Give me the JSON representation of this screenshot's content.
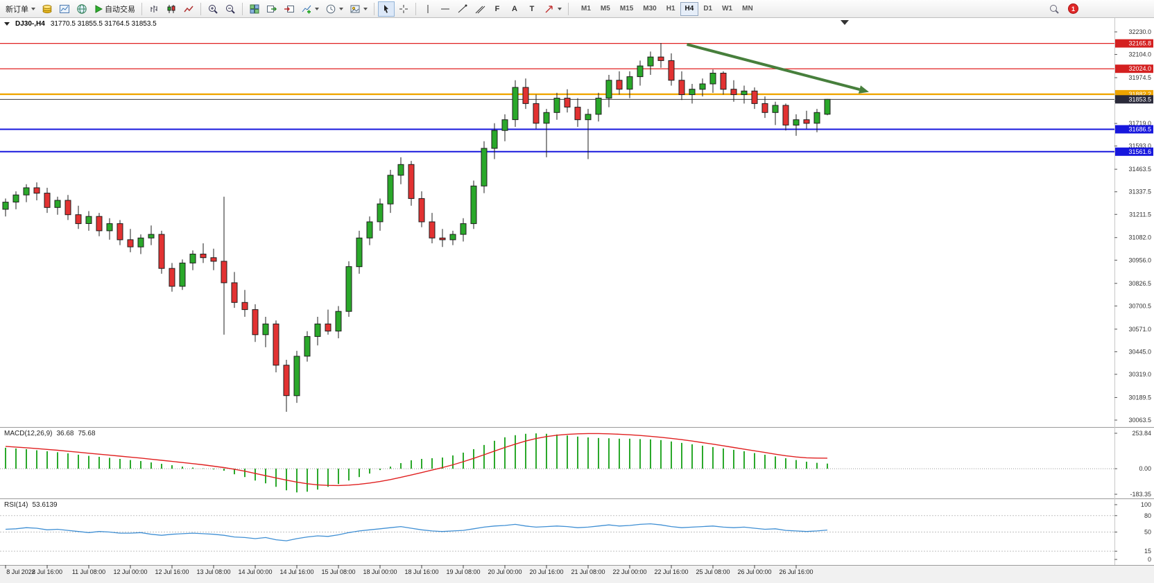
{
  "toolbar": {
    "new_order_label": "新订单",
    "autotrading_label": "自动交易",
    "timeframes": [
      "M1",
      "M5",
      "M15",
      "M30",
      "H1",
      "H4",
      "D1",
      "W1",
      "MN"
    ],
    "active_timeframe": "H4",
    "tool_glyphs": {
      "fibo": "F",
      "text": "A",
      "label": "T"
    },
    "notification_count": "1"
  },
  "chart": {
    "symbol_label": "DJ30-,H4",
    "ohlc": "31770.5 31855.5 31764.5 31853.5"
  },
  "chart_data": {
    "type": "candlestick",
    "symbol": "DJ30-",
    "period": "H4",
    "colors": {
      "up": "#2aa82a",
      "down": "#e23232",
      "outline": "#1d1d1d",
      "bg": "#ffffff"
    },
    "price_axis": [
      "32230.0",
      "32104.0",
      "31974.5",
      "31843.5",
      "31719.0",
      "31593.0",
      "31463.5",
      "31337.5",
      "31211.5",
      "31082.0",
      "30956.0",
      "30826.5",
      "30700.5",
      "30571.0",
      "30445.0",
      "30319.0",
      "30189.5",
      "30063.5"
    ],
    "hlines": [
      {
        "price": 32165.8,
        "color": "#e02020",
        "width": 1.2,
        "badge": "32165.8",
        "badge_bg": "#d42020"
      },
      {
        "price": 32024.0,
        "color": "#e02020",
        "width": 1.2,
        "badge": "32024.0",
        "badge_bg": "#d42020"
      },
      {
        "price": 31882.2,
        "color": "#f0a500",
        "width": 2.4,
        "badge": "31882.2",
        "badge_bg": "#eda400"
      },
      {
        "price": 31853.5,
        "color": "#3a3a3a",
        "width": 1,
        "badge": "31853.5",
        "badge_bg": "#2a2a3a"
      },
      {
        "price": 31686.5,
        "color": "#1717dd",
        "width": 2,
        "badge": "31686.5",
        "badge_bg": "#1717dd"
      },
      {
        "price": 31561.6,
        "color": "#1717dd",
        "width": 2,
        "badge": "31561.6",
        "badge_bg": "#1717dd"
      }
    ],
    "trend_arrow": {
      "from_bar": 65.5,
      "from_price": 32160,
      "to_bar": 83,
      "to_price": 31895,
      "color": "#477f3c"
    },
    "candles": [
      [
        31240,
        31300,
        31200,
        31280
      ],
      [
        31280,
        31340,
        31240,
        31320
      ],
      [
        31320,
        31380,
        31280,
        31360
      ],
      [
        31360,
        31390,
        31290,
        31330
      ],
      [
        31330,
        31360,
        31220,
        31250
      ],
      [
        31250,
        31310,
        31210,
        31290
      ],
      [
        31290,
        31320,
        31180,
        31210
      ],
      [
        31210,
        31260,
        31130,
        31160
      ],
      [
        31160,
        31230,
        31120,
        31200
      ],
      [
        31200,
        31220,
        31090,
        31120
      ],
      [
        31120,
        31190,
        31070,
        31160
      ],
      [
        31160,
        31180,
        31040,
        31070
      ],
      [
        31070,
        31130,
        31000,
        31030
      ],
      [
        31030,
        31100,
        30990,
        31080
      ],
      [
        31080,
        31150,
        31040,
        31100
      ],
      [
        31100,
        31120,
        30880,
        30910
      ],
      [
        30910,
        30940,
        30780,
        30810
      ],
      [
        30810,
        30960,
        30790,
        30940
      ],
      [
        30940,
        31010,
        30900,
        30990
      ],
      [
        30990,
        31050,
        30940,
        30970
      ],
      [
        30970,
        31020,
        30900,
        30950
      ],
      [
        30950,
        31310,
        30540,
        30830
      ],
      [
        30830,
        30890,
        30690,
        30720
      ],
      [
        30720,
        30790,
        30640,
        30680
      ],
      [
        30680,
        30710,
        30500,
        30540
      ],
      [
        30540,
        30640,
        30470,
        30600
      ],
      [
        30600,
        30620,
        30330,
        30370
      ],
      [
        30370,
        30400,
        30110,
        30200
      ],
      [
        30200,
        30450,
        30160,
        30420
      ],
      [
        30420,
        30560,
        30390,
        30530
      ],
      [
        30530,
        30640,
        30480,
        30600
      ],
      [
        30600,
        30680,
        30540,
        30560
      ],
      [
        30560,
        30700,
        30520,
        30670
      ],
      [
        30670,
        30950,
        30640,
        30920
      ],
      [
        30920,
        31120,
        30880,
        31080
      ],
      [
        31080,
        31200,
        31040,
        31170
      ],
      [
        31170,
        31300,
        31120,
        31270
      ],
      [
        31270,
        31460,
        31220,
        31430
      ],
      [
        31430,
        31530,
        31380,
        31490
      ],
      [
        31490,
        31510,
        31260,
        31300
      ],
      [
        31300,
        31340,
        31140,
        31170
      ],
      [
        31170,
        31220,
        31050,
        31080
      ],
      [
        31080,
        31130,
        31030,
        31070
      ],
      [
        31070,
        31120,
        31040,
        31100
      ],
      [
        31100,
        31190,
        31060,
        31160
      ],
      [
        31160,
        31400,
        31130,
        31370
      ],
      [
        31370,
        31620,
        31330,
        31580
      ],
      [
        31580,
        31720,
        31520,
        31680
      ],
      [
        31680,
        31770,
        31620,
        31740
      ],
      [
        31740,
        31960,
        31700,
        31920
      ],
      [
        31920,
        31970,
        31800,
        31830
      ],
      [
        31830,
        31880,
        31690,
        31720
      ],
      [
        31720,
        31800,
        31530,
        31780
      ],
      [
        31780,
        31890,
        31740,
        31860
      ],
      [
        31860,
        31910,
        31780,
        31810
      ],
      [
        31810,
        31860,
        31700,
        31740
      ],
      [
        31740,
        31800,
        31520,
        31770
      ],
      [
        31770,
        31890,
        31730,
        31860
      ],
      [
        31860,
        31990,
        31810,
        31960
      ],
      [
        31960,
        32010,
        31880,
        31910
      ],
      [
        31910,
        32010,
        31860,
        31980
      ],
      [
        31980,
        32070,
        31930,
        32040
      ],
      [
        32040,
        32120,
        31990,
        32090
      ],
      [
        32090,
        32168,
        32030,
        32070
      ],
      [
        32070,
        32110,
        31930,
        31960
      ],
      [
        31960,
        32010,
        31850,
        31880
      ],
      [
        31880,
        31940,
        31830,
        31910
      ],
      [
        31910,
        31970,
        31870,
        31940
      ],
      [
        31940,
        32020,
        31890,
        32000
      ],
      [
        32000,
        32010,
        31880,
        31910
      ],
      [
        31910,
        31960,
        31840,
        31880
      ],
      [
        31880,
        31930,
        31830,
        31900
      ],
      [
        31900,
        31920,
        31800,
        31830
      ],
      [
        31830,
        31870,
        31750,
        31780
      ],
      [
        31780,
        31840,
        31710,
        31820
      ],
      [
        31820,
        31830,
        31680,
        31710
      ],
      [
        31710,
        31770,
        31650,
        31740
      ],
      [
        31740,
        31790,
        31690,
        31720
      ],
      [
        31720,
        31800,
        31670,
        31780
      ],
      [
        31770.5,
        31855.5,
        31764.5,
        31853.5
      ]
    ],
    "time_labels": [
      {
        "bar": 0,
        "label": "8 Jul 2022"
      },
      {
        "bar": 4,
        "label": "8 Jul 16:00"
      },
      {
        "bar": 8,
        "label": "11 Jul 08:00"
      },
      {
        "bar": 12,
        "label": "12 Jul 00:00"
      },
      {
        "bar": 16,
        "label": "12 Jul 16:00"
      },
      {
        "bar": 20,
        "label": "13 Jul 08:00"
      },
      {
        "bar": 24,
        "label": "14 Jul 00:00"
      },
      {
        "bar": 28,
        "label": "14 Jul 16:00"
      },
      {
        "bar": 32,
        "label": "15 Jul 08:00"
      },
      {
        "bar": 36,
        "label": "18 Jul 00:00"
      },
      {
        "bar": 40,
        "label": "18 Jul 16:00"
      },
      {
        "bar": 44,
        "label": "19 Jul 08:00"
      },
      {
        "bar": 48,
        "label": "20 Jul 00:00"
      },
      {
        "bar": 52,
        "label": "20 Jul 16:00"
      },
      {
        "bar": 56,
        "label": "21 Jul 08:00"
      },
      {
        "bar": 60,
        "label": "22 Jul 00:00"
      },
      {
        "bar": 64,
        "label": "22 Jul 16:00"
      },
      {
        "bar": 68,
        "label": "25 Jul 08:00"
      },
      {
        "bar": 72,
        "label": "26 Jul 00:00"
      },
      {
        "bar": 76,
        "label": "26 Jul 16:00"
      }
    ],
    "macd": {
      "label": "MACD(12,26,9)",
      "value_main": "36.68",
      "value_signal": "75.68",
      "axis": [
        "253.84",
        "0.00",
        "-183.35"
      ],
      "hist_color": "#2aa82a",
      "signal_color": "#e02020",
      "histogram": [
        150,
        145,
        140,
        132,
        125,
        118,
        110,
        100,
        92,
        85,
        78,
        70,
        62,
        55,
        45,
        35,
        25,
        15,
        8,
        2,
        -5,
        -15,
        -40,
        -60,
        -85,
        -105,
        -130,
        -155,
        -170,
        -165,
        -150,
        -130,
        -110,
        -85,
        -60,
        -35,
        -10,
        15,
        40,
        60,
        70,
        75,
        80,
        95,
        115,
        140,
        170,
        200,
        225,
        240,
        250,
        253,
        250,
        245,
        238,
        230,
        224,
        220,
        218,
        215,
        215,
        212,
        210,
        205,
        195,
        185,
        175,
        165,
        155,
        145,
        135,
        125,
        112,
        100,
        88,
        75,
        62,
        50,
        42,
        36.68
      ],
      "signal": [
        160,
        155,
        150,
        144,
        138,
        132,
        125,
        118,
        111,
        104,
        97,
        90,
        83,
        76,
        68,
        60,
        52,
        44,
        36,
        28,
        18,
        8,
        -4,
        -18,
        -34,
        -50,
        -66,
        -82,
        -96,
        -108,
        -116,
        -120,
        -121,
        -118,
        -112,
        -103,
        -92,
        -78,
        -62,
        -45,
        -28,
        -10,
        8,
        28,
        50,
        74,
        100,
        126,
        152,
        176,
        198,
        216,
        230,
        240,
        246,
        250,
        252,
        252,
        250,
        247,
        243,
        238,
        232,
        225,
        217,
        208,
        198,
        187,
        176,
        164,
        152,
        140,
        128,
        116,
        104,
        93,
        84,
        78,
        76,
        75.68
      ]
    },
    "rsi": {
      "label": "RSI(14)",
      "value": "53.6139",
      "axis": [
        "100",
        "80",
        "50",
        "15",
        "0"
      ],
      "levels": [
        80,
        50,
        15
      ],
      "color": "#3f8fd4",
      "values": [
        55,
        56,
        58,
        57,
        54,
        55,
        53,
        51,
        49,
        51,
        50,
        48,
        48,
        49,
        46,
        44,
        46,
        47,
        48,
        47,
        46,
        44,
        41,
        40,
        38,
        40,
        36,
        34,
        38,
        41,
        43,
        42,
        45,
        49,
        52,
        54,
        56,
        58,
        60,
        57,
        54,
        52,
        51,
        52,
        53,
        56,
        59,
        61,
        62,
        64,
        61,
        59,
        60,
        61,
        60,
        58,
        59,
        61,
        63,
        61,
        62,
        64,
        65,
        63,
        60,
        58,
        59,
        60,
        61,
        59,
        58,
        59,
        57,
        55,
        56,
        53,
        52,
        51,
        52,
        53.6139
      ]
    }
  }
}
